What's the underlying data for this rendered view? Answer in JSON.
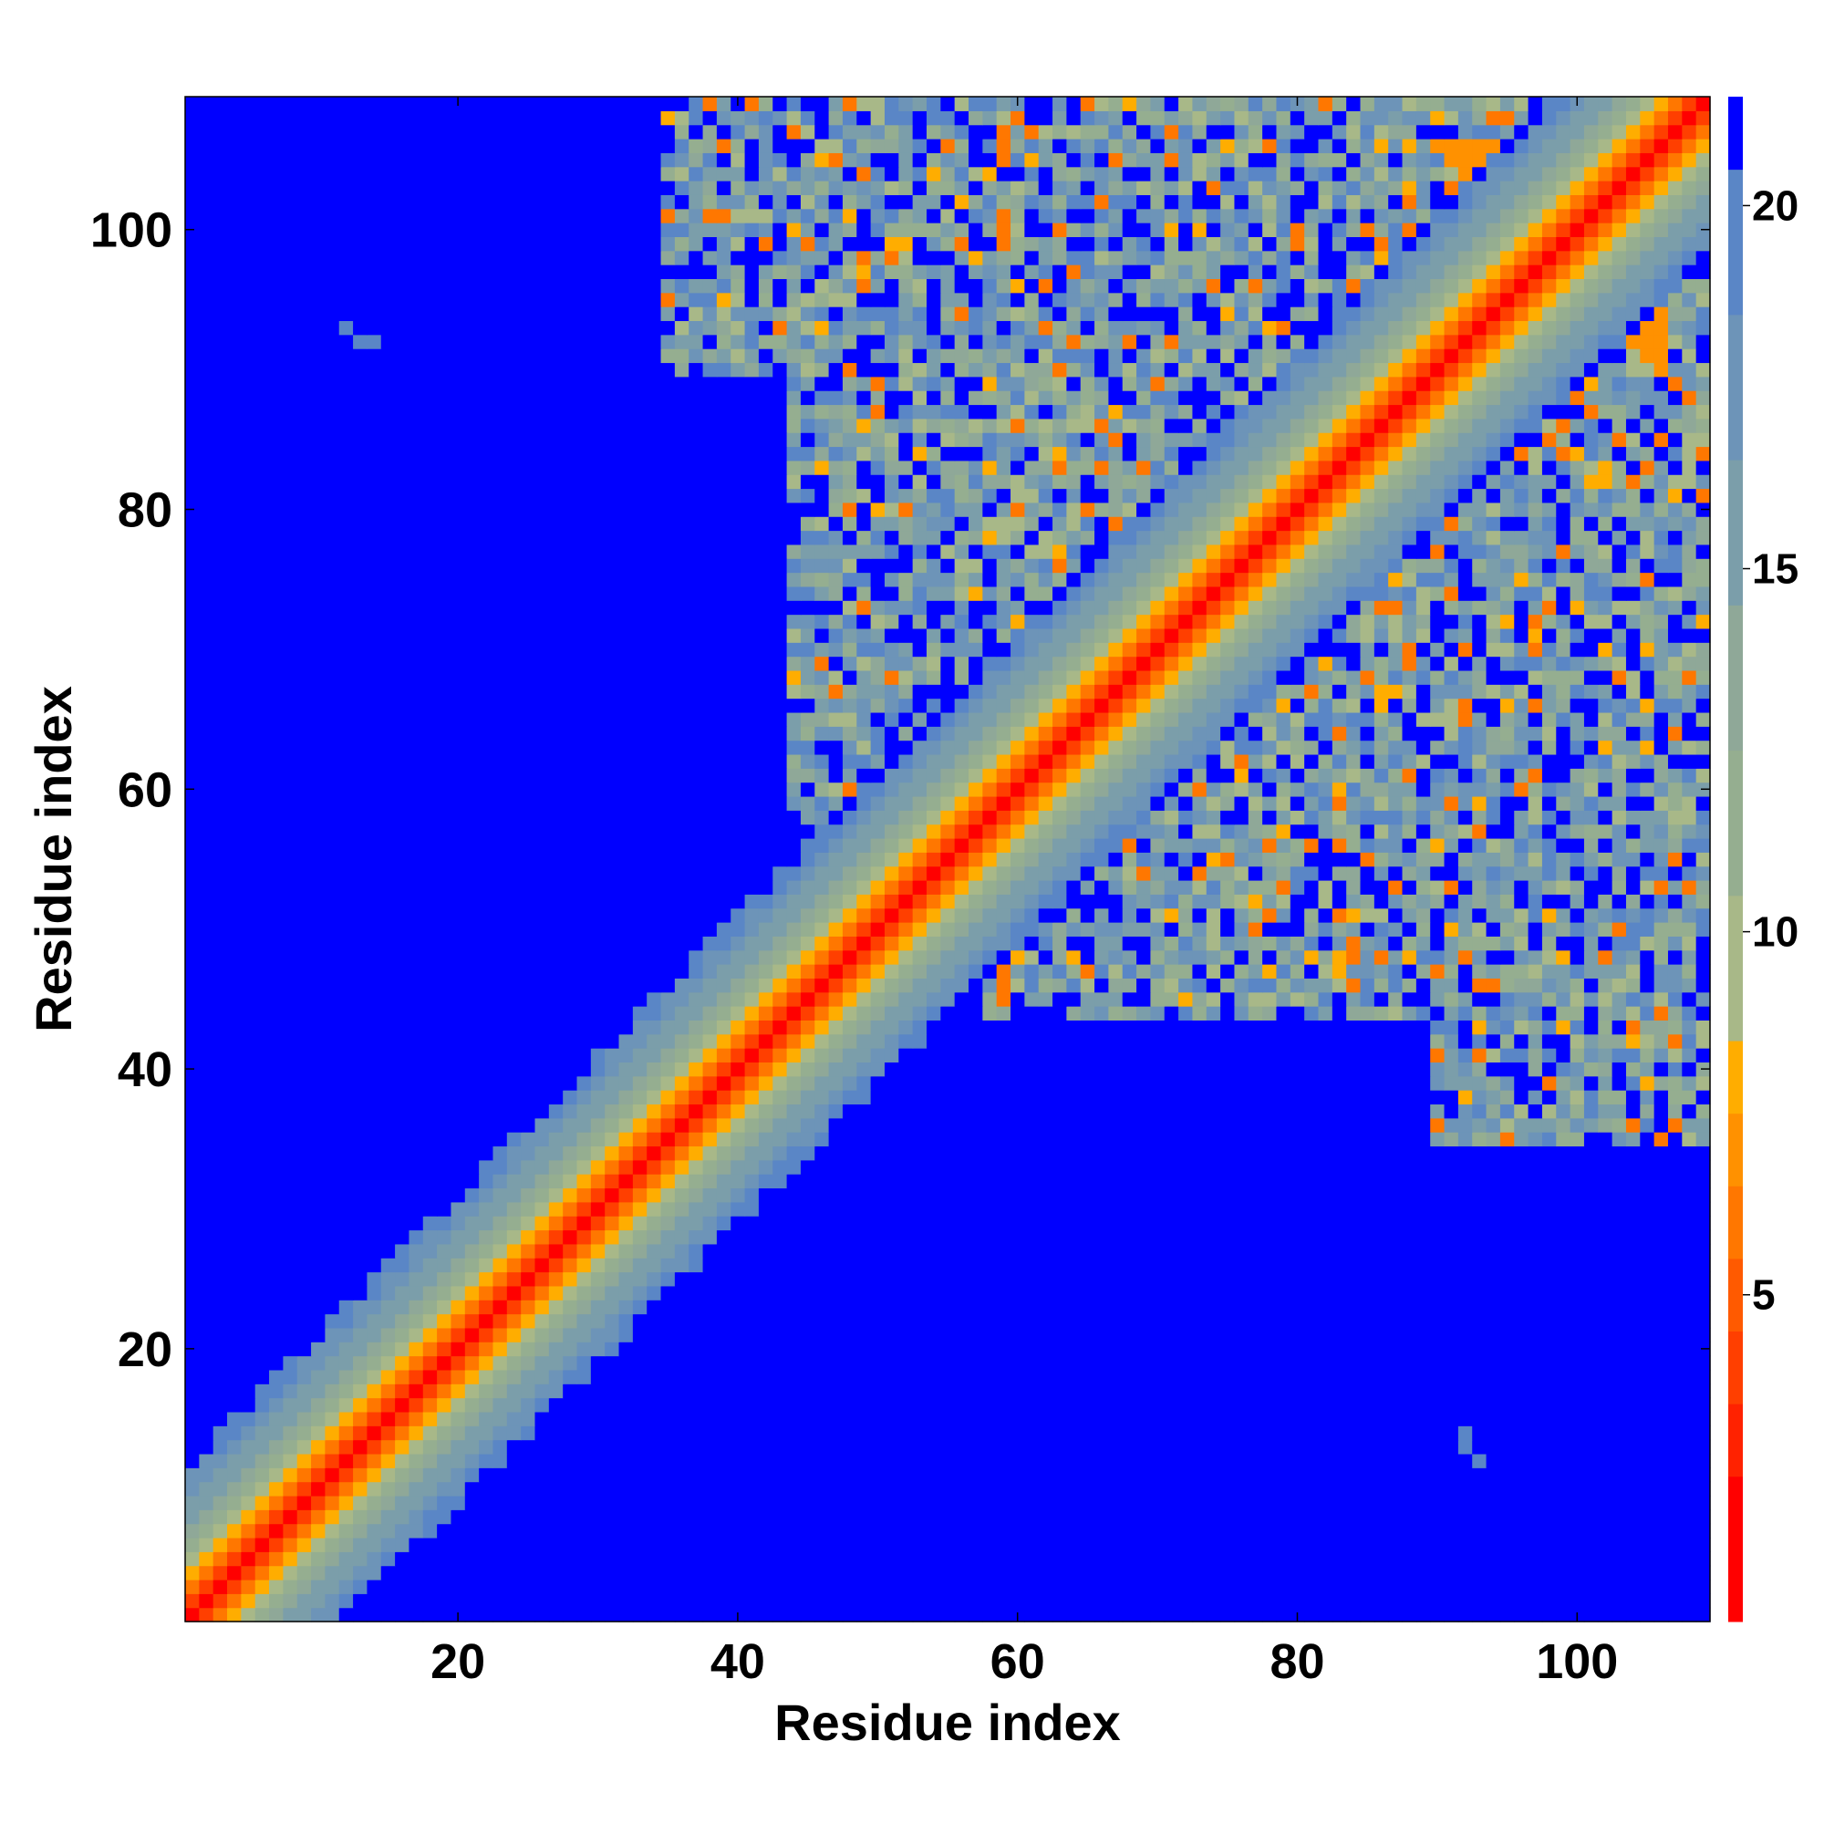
{
  "chart_data": {
    "type": "heatmap",
    "title": "",
    "xlabel": "Residue index",
    "ylabel": "Residue index",
    "n_residues": 109,
    "xlim": [
      0.5,
      109.5
    ],
    "ylim": [
      0.5,
      109.5
    ],
    "x_ticks": [
      20,
      40,
      60,
      80,
      100
    ],
    "y_ticks": [
      20,
      40,
      60,
      80,
      100
    ],
    "colorbar": {
      "min": 0.5,
      "max": 21.5,
      "ticks": [
        5,
        10,
        15,
        20
      ],
      "levels": [
        {
          "from": 0.5,
          "to": 2.5,
          "color": "#ff0000"
        },
        {
          "from": 2.5,
          "to": 3.5,
          "color": "#ff2200"
        },
        {
          "from": 3.5,
          "to": 4.5,
          "color": "#ff3f00"
        },
        {
          "from": 4.5,
          "to": 5.5,
          "color": "#ff5a00"
        },
        {
          "from": 5.5,
          "to": 6.5,
          "color": "#ff7700"
        },
        {
          "from": 6.5,
          "to": 7.5,
          "color": "#ff9100"
        },
        {
          "from": 7.5,
          "to": 8.5,
          "color": "#ffad00"
        },
        {
          "from": 8.5,
          "to": 10.5,
          "color": "#a8b888"
        },
        {
          "from": 10.5,
          "to": 12.5,
          "color": "#95ae90"
        },
        {
          "from": 12.5,
          "to": 14.5,
          "color": "#8fa898"
        },
        {
          "from": 14.5,
          "to": 16.5,
          "color": "#7b9eaa"
        },
        {
          "from": 16.5,
          "to": 18.5,
          "color": "#6d94b8"
        },
        {
          "from": 18.5,
          "to": 20.5,
          "color": "#5a86c6"
        },
        {
          "from": 20.5,
          "to": 21.5,
          "color": "#0000ff"
        }
      ]
    },
    "diagonal_band": {
      "description_values": "distance grows with |i-j|",
      "profile": [
        {
          "offset": 0,
          "value": 1.5
        },
        {
          "offset": 1,
          "value": 3.8
        },
        {
          "offset": 2,
          "value": 6.0
        },
        {
          "offset": 3,
          "value": 7.8
        },
        {
          "offset": 4,
          "value": 9.8
        },
        {
          "offset": 5,
          "value": 11.5
        },
        {
          "offset": 6,
          "value": 13.0
        },
        {
          "offset": 7,
          "value": 14.6
        },
        {
          "offset": 8,
          "value": 16.2
        },
        {
          "offset": 9,
          "value": 17.8
        },
        {
          "offset": 10,
          "value": 19.3
        },
        {
          "offset": 11,
          "value": 21.0
        }
      ]
    },
    "contact_regions": [
      {
        "i_range": [
          58,
          109
        ],
        "j_range": [
          47,
          109
        ],
        "value_range": [
          9,
          20
        ],
        "note": "C-terminal domain with scattered contacts"
      },
      {
        "i_range": [
          35,
          109
        ],
        "j_range": [
          48,
          109
        ],
        "value_range": [
          9,
          20
        ],
        "note": "upper-left triangle contacts"
      },
      {
        "i_range": [
          84,
          92
        ],
        "j_range": [
          86,
          94
        ],
        "value_range": [
          5,
          8
        ],
        "note": "helix crossing near 90"
      },
      {
        "i_range": [
          90,
          98
        ],
        "j_range": [
          98,
          106
        ],
        "value_range": [
          5,
          8
        ],
        "note": "contact lines near 95-105"
      }
    ],
    "isolated_points": [
      {
        "i": 13,
        "j": 92,
        "value": 19
      },
      {
        "i": 12,
        "j": 93,
        "value": 19
      },
      {
        "i": 14,
        "j": 92,
        "value": 19
      },
      {
        "i": 92,
        "j": 13,
        "value": 19
      },
      {
        "i": 93,
        "j": 12,
        "value": 19
      },
      {
        "i": 92,
        "j": 14,
        "value": 19
      }
    ]
  }
}
